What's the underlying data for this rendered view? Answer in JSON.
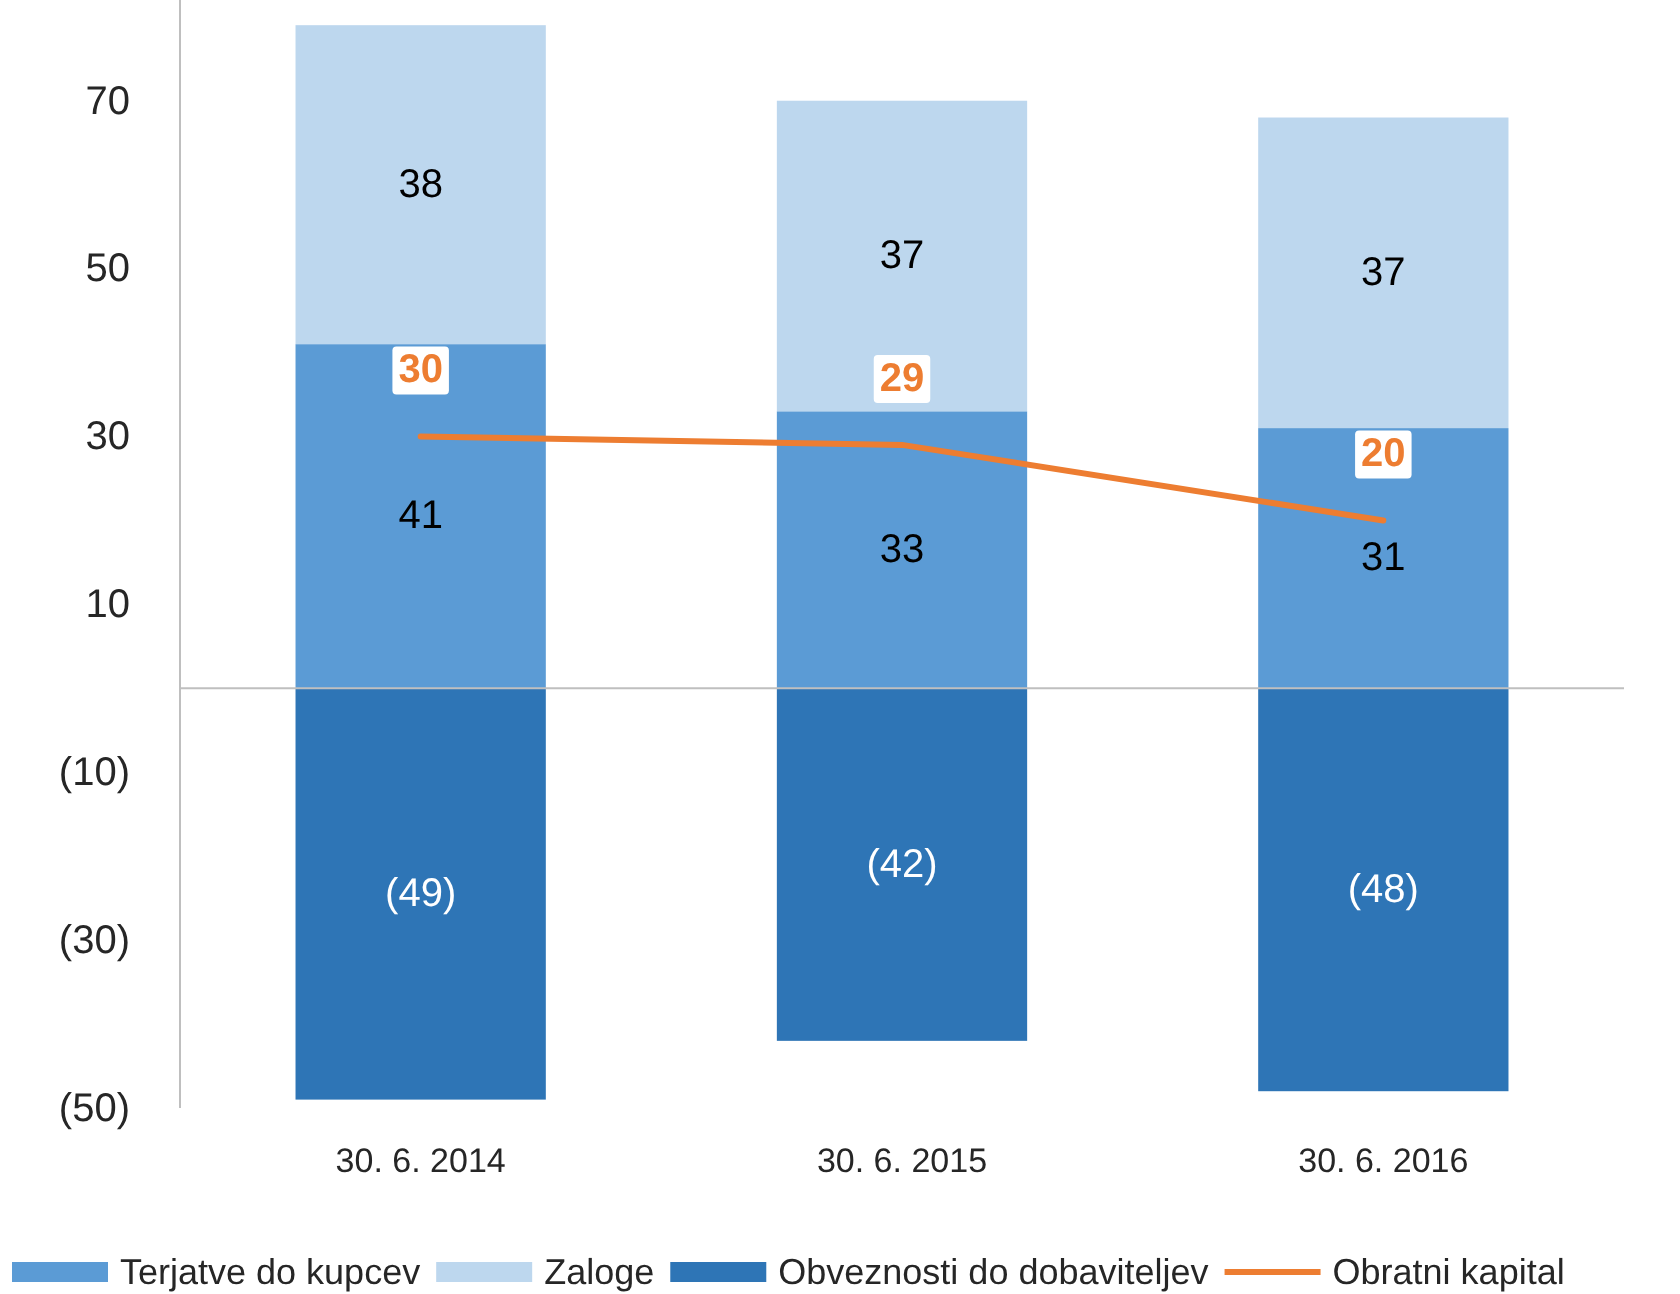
{
  "chart_data": {
    "type": "bar",
    "stacked": true,
    "categories": [
      "30. 6. 2014",
      "30. 6. 2015",
      "30. 6. 2016"
    ],
    "ylim": [
      -50,
      82
    ],
    "yticks": [
      {
        "value": -50,
        "label": "(50)"
      },
      {
        "value": -30,
        "label": "(30)"
      },
      {
        "value": -10,
        "label": "(10)"
      },
      10,
      30,
      50,
      70
    ],
    "grid": false,
    "legend": "bottom",
    "series": [
      {
        "name": "Terjatve do kupcev",
        "color": "#5b9bd5",
        "values": [
          41,
          33,
          31
        ],
        "value_labels": [
          "41",
          "33",
          "31"
        ]
      },
      {
        "name": "Zaloge",
        "color": "#bdd7ee",
        "values": [
          38,
          37,
          37
        ],
        "value_labels": [
          "38",
          "37",
          "37"
        ]
      },
      {
        "name": "Obveznosti do dobaviteljev",
        "color": "#2e75b6",
        "values": [
          -49,
          -42,
          -48
        ],
        "value_labels": [
          "(49)",
          "(42)",
          "(48)"
        ]
      },
      {
        "name": "Obratni kapital",
        "type": "line",
        "color": "#ed7d31",
        "values": [
          30,
          29,
          20
        ],
        "value_labels": [
          "30",
          "29",
          "20"
        ]
      }
    ]
  }
}
